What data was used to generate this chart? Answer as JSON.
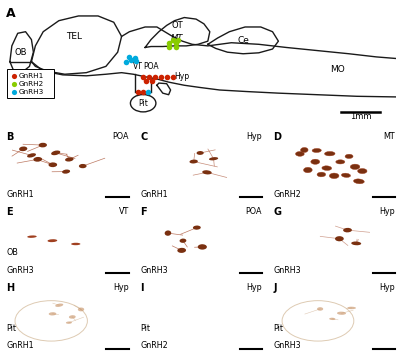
{
  "bg_color": "#f0ebe3",
  "panel_bg_colors": {
    "B": "#d8c5ad",
    "C": "#dccab4",
    "D": "#d5bfa5",
    "E": "#e8ddd2",
    "F": "#d8c0a8",
    "G": "#ddc8b5",
    "H": "#e5ddd0",
    "I": "#e8e0d5",
    "J": "#e5ddd0"
  },
  "gnrh1_color": "#cc2200",
  "gnrh2_color": "#88cc00",
  "gnrh3_color": "#00aadd",
  "cell_dark": "#7a3010",
  "cell_mid": "#a04020",
  "cell_light_brown": "#c8956a",
  "lc": "#1a1a1a",
  "lw": 1.0,
  "legend_gnrh1": "GnRH1",
  "legend_gnrh2": "GnRH2",
  "legend_gnrh3": "GnRH3",
  "scalebar_label": "1mm"
}
